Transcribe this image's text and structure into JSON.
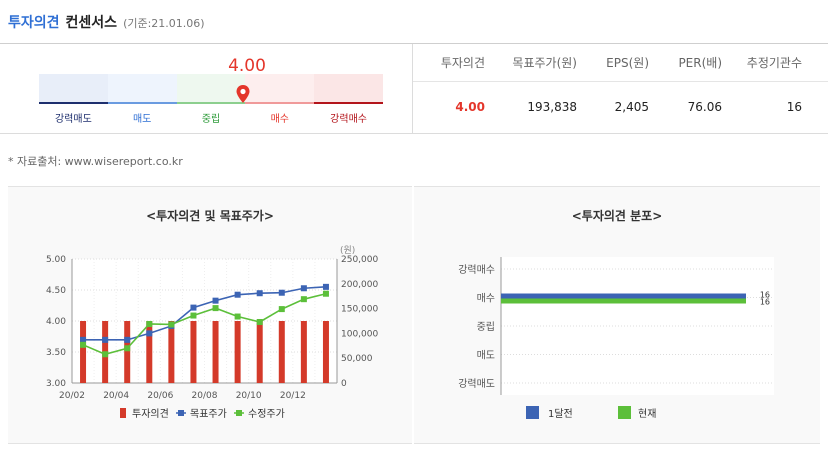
{
  "header": {
    "title": "투자의견",
    "subtitle": "컨센서스",
    "date": "(기준:21.01.06)"
  },
  "gauge": {
    "score_text": "4.00",
    "score": 4.0,
    "labels": [
      "강력매도",
      "매도",
      "중립",
      "매수",
      "강력매수"
    ],
    "label_colors": [
      "#1e2f6e",
      "#2f6fd4",
      "#2e9b3a",
      "#e4362b",
      "#b3141b"
    ],
    "fill_colors": [
      "#e8eef9",
      "#eef4fd",
      "#eef8ef",
      "#fdeeee",
      "#fbe6e6"
    ],
    "bar_colors": [
      "#1e2f6e",
      "#6a9be0",
      "#8ccf8e",
      "#f09a9a",
      "#b3141b"
    ],
    "pin_color": "#e4362b"
  },
  "table": {
    "headers": [
      "투자의견",
      "목표주가(원)",
      "EPS(원)",
      "PER(배)",
      "추정기관수"
    ],
    "values": [
      "4.00",
      "193,838",
      "2,405",
      "76.06",
      "16"
    ]
  },
  "source_text": "* 자료출처: www.wisereport.co.kr",
  "chart_left": {
    "title": "<투자의견 및 목표주가>",
    "unit_label": "(원)",
    "legend": [
      "투자의견",
      "목표주가",
      "수정주가"
    ]
  },
  "chart_right": {
    "title": "<투자의견 분포>",
    "legend": [
      "1달전",
      "현재"
    ]
  },
  "chart_data": [
    {
      "type": "bar",
      "title": "<투자의견 및 목표주가>",
      "x": [
        "20/02",
        "20/03",
        "20/04",
        "20/05",
        "20/06",
        "20/07",
        "20/08",
        "20/09",
        "20/10",
        "20/11",
        "20/12",
        "21/01"
      ],
      "x_tick_labels": [
        "20/02",
        "20/04",
        "20/06",
        "20/08",
        "20/10",
        "20/12"
      ],
      "y_left_ticks": [
        "5.00",
        "4.50",
        "4.00",
        "3.50",
        "3.00"
      ],
      "y_left_lim": [
        3.0,
        5.0
      ],
      "y_right_ticks": [
        "250,000",
        "200,000",
        "150,000",
        "100,000",
        "50,000",
        "0"
      ],
      "y_right_lim": [
        0,
        250000
      ],
      "series": [
        {
          "name": "투자의견",
          "kind": "bar",
          "axis": "left",
          "color": "#d43a2a",
          "values": [
            4.0,
            4.0,
            4.0,
            4.0,
            4.0,
            4.0,
            4.0,
            4.0,
            4.0,
            4.0,
            4.0,
            4.0
          ]
        },
        {
          "name": "목표주가",
          "kind": "line",
          "axis": "right",
          "color": "#3c64b4",
          "values": [
            87000,
            87000,
            87000,
            100000,
            115000,
            152000,
            166000,
            178000,
            181000,
            182000,
            191000,
            193838
          ]
        },
        {
          "name": "수정주가",
          "kind": "line",
          "axis": "right",
          "color": "#5cbf3a",
          "values": [
            77000,
            58000,
            70000,
            119000,
            118000,
            136000,
            151000,
            134000,
            123000,
            149000,
            169000,
            180000
          ]
        }
      ]
    },
    {
      "type": "bar",
      "orientation": "horizontal",
      "title": "<투자의견 분포>",
      "categories": [
        "강력매수",
        "매수",
        "중립",
        "매도",
        "강력매도"
      ],
      "series": [
        {
          "name": "1달전",
          "color": "#3c64b4",
          "values": [
            0,
            16,
            0,
            0,
            0
          ]
        },
        {
          "name": "현재",
          "color": "#5cbf3a",
          "values": [
            0,
            16,
            0,
            0,
            0
          ]
        }
      ],
      "xlim": [
        0,
        16
      ],
      "data_labels": [
        "16",
        "16"
      ]
    }
  ]
}
